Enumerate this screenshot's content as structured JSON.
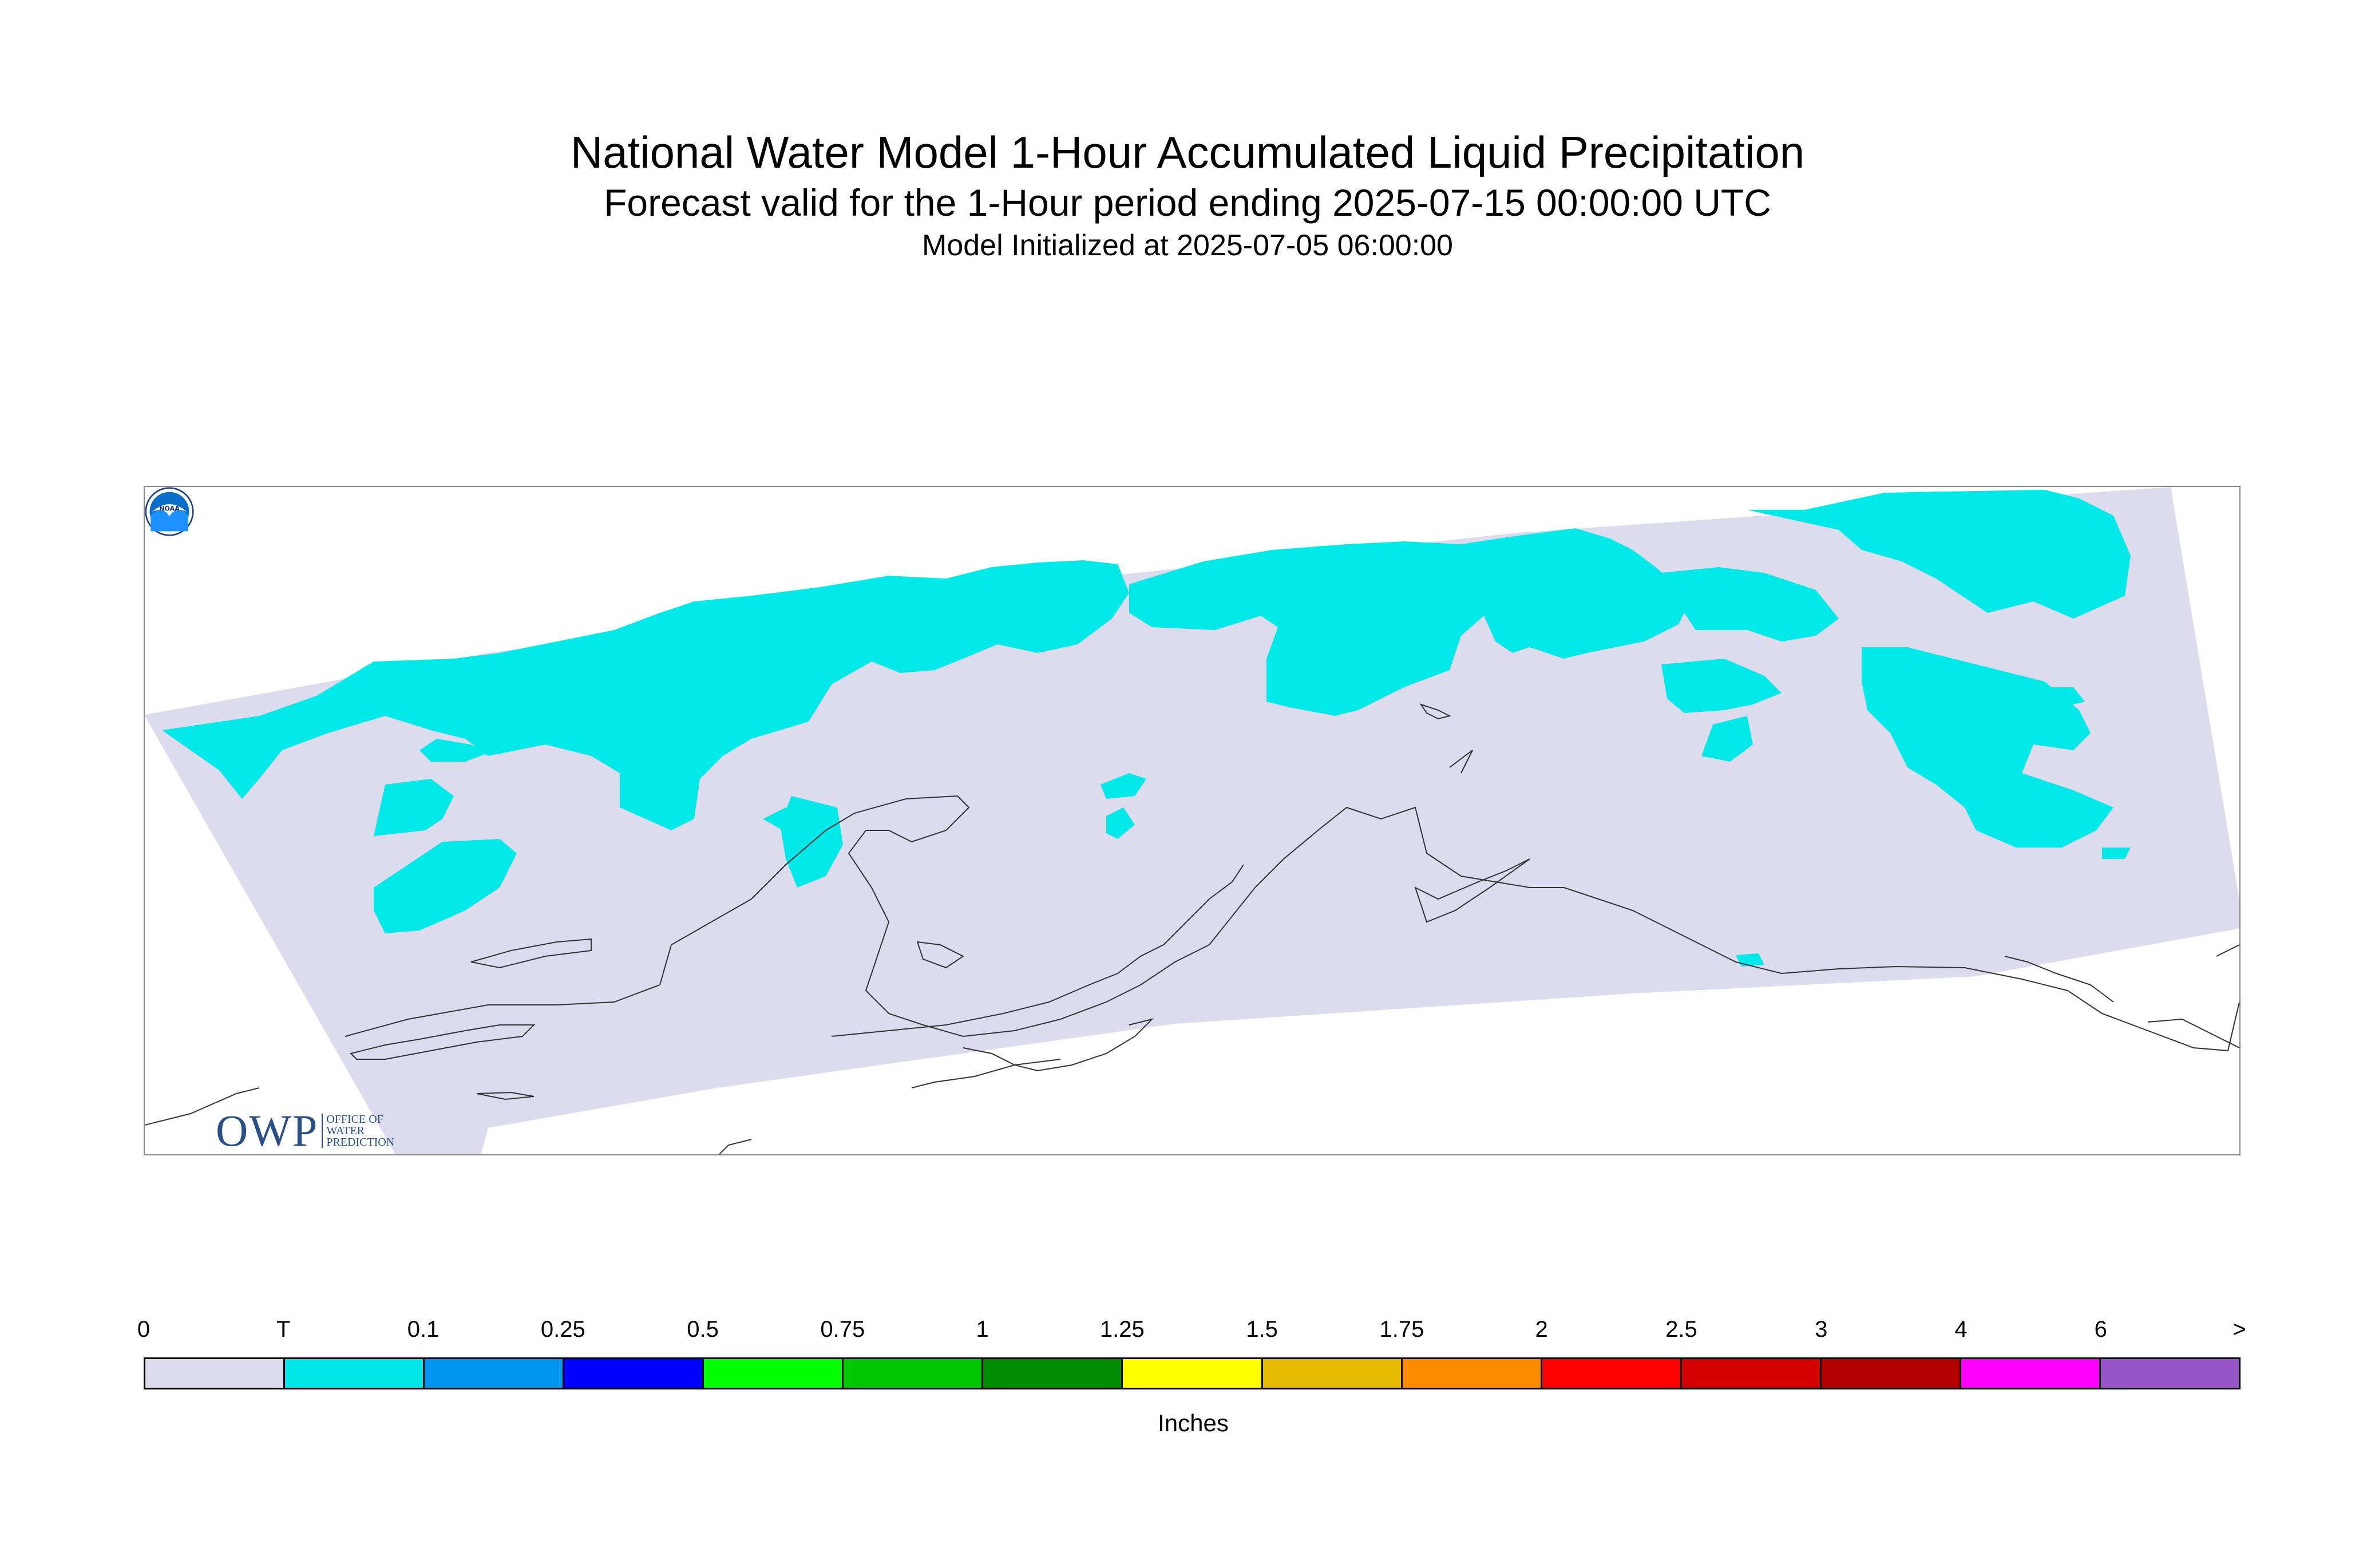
{
  "title": "National Water Model 1-Hour Accumulated Liquid Precipitation",
  "subtitle": "Forecast valid for the 1-Hour period ending 2025-07-15 00:00:00 UTC",
  "init_line": "Model Initialized at 2025-07-05 06:00:00",
  "logos": {
    "owp_letters": "OWP",
    "owp_line1": "OFFICE OF",
    "owp_line2": "WATER",
    "owp_line3": "PREDICTION",
    "owp_icon": "owp-logo",
    "noaa_text": "NOAA",
    "noaa_icon": "noaa-seal"
  },
  "map": {
    "region": "Alaska",
    "domain_color": "#dcdcee",
    "precip_color": "#00e8e8",
    "coast_color": "#333333"
  },
  "legend": {
    "units": "Inches",
    "tick_labels": [
      "0",
      "T",
      "0.1",
      "0.25",
      "0.5",
      "0.75",
      "1",
      "1.25",
      "1.5",
      "1.75",
      "2",
      "2.5",
      "3",
      "4",
      "6",
      ">"
    ],
    "colors": [
      "#dcdcee",
      "#00e6e6",
      "#0096f0",
      "#0000ff",
      "#00ff00",
      "#00c800",
      "#008c00",
      "#ffff00",
      "#e6bc00",
      "#ff8c00",
      "#ff0000",
      "#d20000",
      "#b40000",
      "#ff00ff",
      "#9655c8"
    ]
  }
}
